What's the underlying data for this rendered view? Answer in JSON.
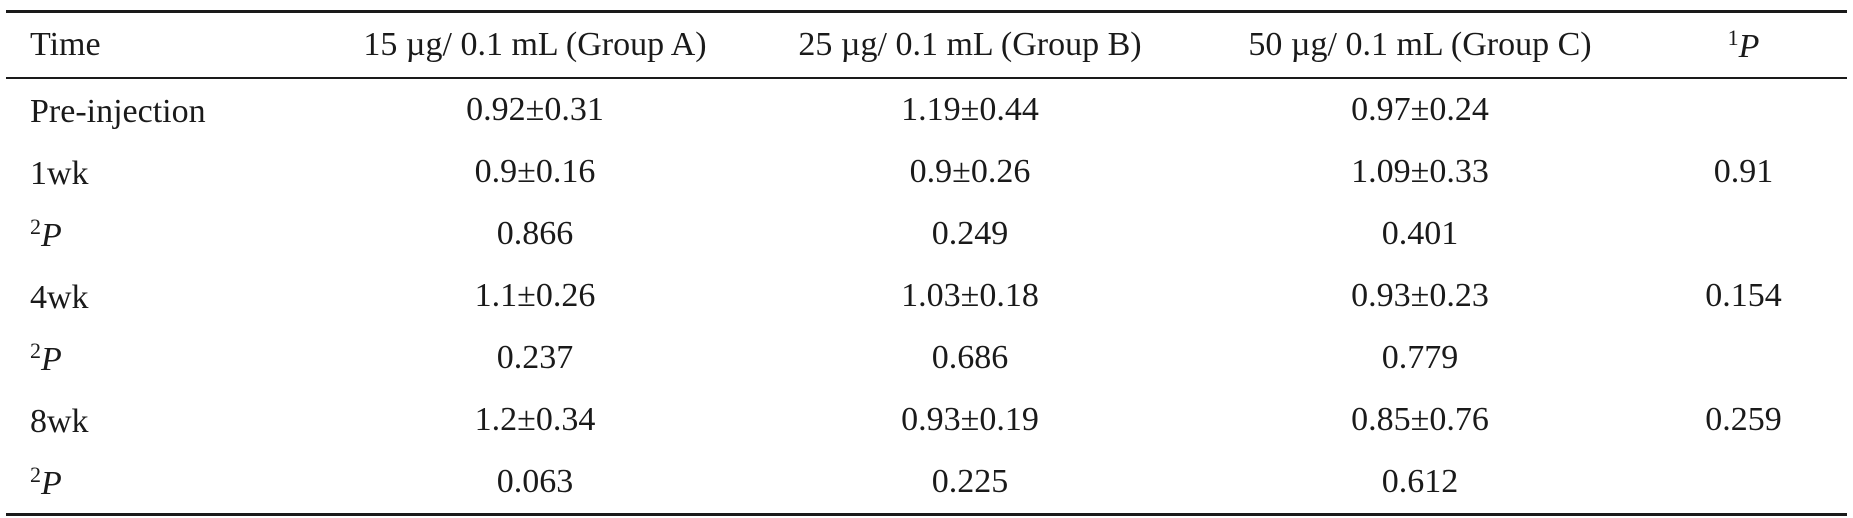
{
  "table": {
    "headers": [
      "Time",
      "15 µg/ 0.1 mL (Group A)",
      "25 µg/ 0.1 mL (Group B)",
      "50 µg/ 0.1 mL (Group C)"
    ],
    "p_header": {
      "sup": "1",
      "letter": "P"
    },
    "rows": [
      {
        "label": "Pre-injection",
        "sup": "",
        "a": "0.92±0.31",
        "b": "1.19±0.44",
        "c": "0.97±0.24",
        "p": ""
      },
      {
        "label": "1wk",
        "sup": "",
        "a": "0.9±0.16",
        "b": "0.9±0.26",
        "c": "1.09±0.33",
        "p": "0.91"
      },
      {
        "label": "P",
        "sup": "2",
        "a": "0.866",
        "b": "0.249",
        "c": "0.401",
        "p": ""
      },
      {
        "label": "4wk",
        "sup": "",
        "a": "1.1±0.26",
        "b": "1.03±0.18",
        "c": "0.93±0.23",
        "p": "0.154"
      },
      {
        "label": "P",
        "sup": "2",
        "a": "0.237",
        "b": "0.686",
        "c": "0.779",
        "p": ""
      },
      {
        "label": "8wk",
        "sup": "",
        "a": "1.2±0.34",
        "b": "0.93±0.19",
        "c": "0.85±0.76",
        "p": "0.259"
      },
      {
        "label": "P",
        "sup": "2",
        "a": "0.063",
        "b": "0.225",
        "c": "0.612",
        "p": ""
      }
    ]
  }
}
